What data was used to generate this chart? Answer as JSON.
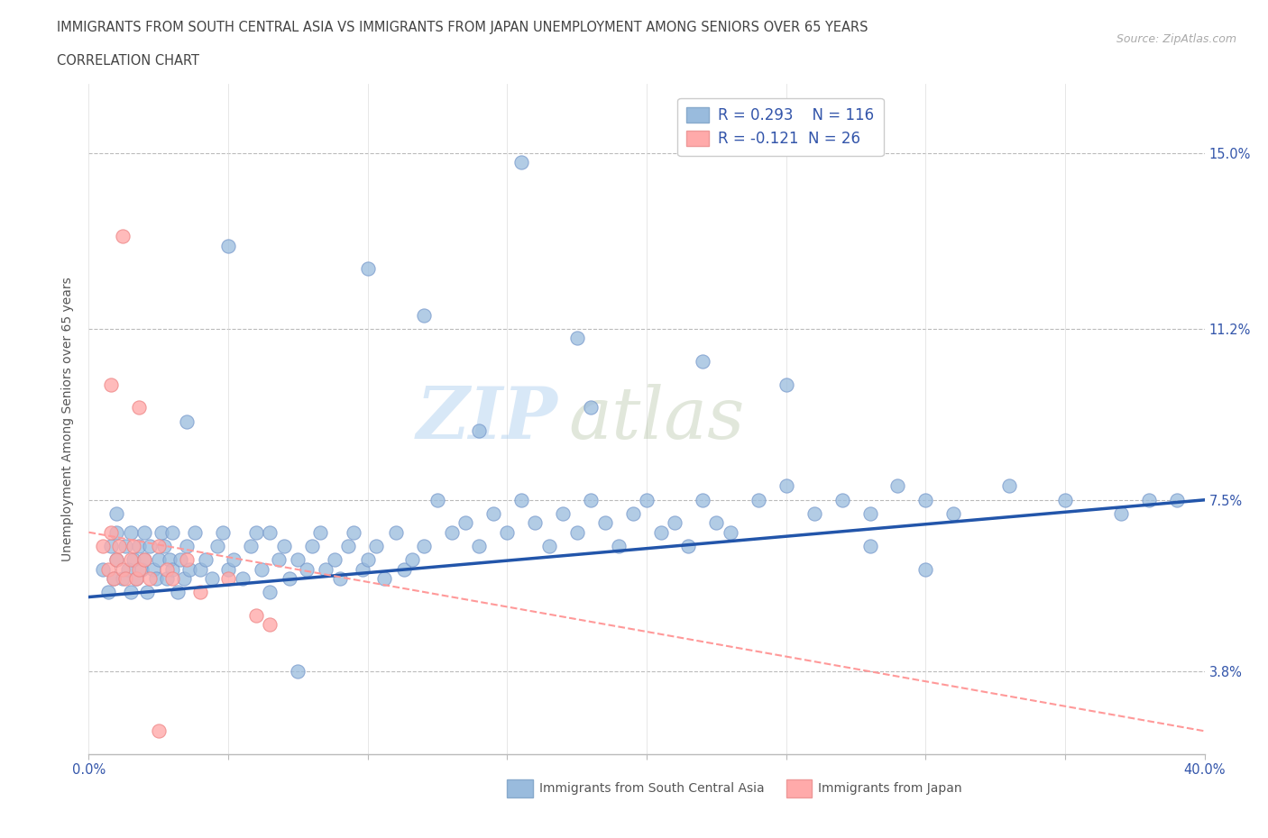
{
  "title_line1": "IMMIGRANTS FROM SOUTH CENTRAL ASIA VS IMMIGRANTS FROM JAPAN UNEMPLOYMENT AMONG SENIORS OVER 65 YEARS",
  "title_line2": "CORRELATION CHART",
  "source": "Source: ZipAtlas.com",
  "ylabel": "Unemployment Among Seniors over 65 years",
  "xlim": [
    0.0,
    0.4
  ],
  "ylim": [
    0.02,
    0.165
  ],
  "xticks": [
    0.0,
    0.05,
    0.1,
    0.15,
    0.2,
    0.25,
    0.3,
    0.35,
    0.4
  ],
  "xticklabels": [
    "0.0%",
    "",
    "",
    "",
    "",
    "",
    "",
    "",
    "40.0%"
  ],
  "ytick_positions": [
    0.038,
    0.075,
    0.112,
    0.15
  ],
  "ytick_labels": [
    "3.8%",
    "7.5%",
    "11.2%",
    "15.0%"
  ],
  "R_blue": 0.293,
  "N_blue": 116,
  "R_pink": -0.121,
  "N_pink": 26,
  "blue_color": "#99BBDD",
  "pink_color": "#FFAAAA",
  "trend_blue_color": "#2255AA",
  "trend_pink_color": "#FF9999",
  "legend_label_blue": "Immigrants from South Central Asia",
  "legend_label_pink": "Immigrants from Japan",
  "watermark_zip": "ZIP",
  "watermark_atlas": "atlas",
  "background_color": "#FFFFFF",
  "grid_color": "#BBBBBB",
  "title_color": "#444444",
  "label_color": "#555555",
  "axis_label_color": "#3355AA",
  "blue_scatter_x": [
    0.005,
    0.007,
    0.008,
    0.009,
    0.01,
    0.01,
    0.01,
    0.012,
    0.013,
    0.014,
    0.015,
    0.015,
    0.016,
    0.017,
    0.018,
    0.019,
    0.02,
    0.02,
    0.021,
    0.022,
    0.023,
    0.024,
    0.025,
    0.026,
    0.027,
    0.028,
    0.029,
    0.03,
    0.03,
    0.032,
    0.033,
    0.034,
    0.035,
    0.036,
    0.038,
    0.04,
    0.042,
    0.044,
    0.046,
    0.048,
    0.05,
    0.052,
    0.055,
    0.058,
    0.06,
    0.062,
    0.065,
    0.068,
    0.07,
    0.072,
    0.075,
    0.078,
    0.08,
    0.083,
    0.085,
    0.088,
    0.09,
    0.093,
    0.095,
    0.098,
    0.1,
    0.103,
    0.106,
    0.11,
    0.113,
    0.116,
    0.12,
    0.125,
    0.13,
    0.135,
    0.14,
    0.145,
    0.15,
    0.155,
    0.16,
    0.165,
    0.17,
    0.175,
    0.18,
    0.185,
    0.19,
    0.195,
    0.2,
    0.205,
    0.21,
    0.215,
    0.22,
    0.225,
    0.23,
    0.24,
    0.25,
    0.26,
    0.27,
    0.28,
    0.29,
    0.3,
    0.31,
    0.33,
    0.35,
    0.37,
    0.38,
    0.39,
    0.14,
    0.25,
    0.3,
    0.155,
    0.175,
    0.1,
    0.12,
    0.18,
    0.22,
    0.28,
    0.035,
    0.05,
    0.065,
    0.075
  ],
  "blue_scatter_y": [
    0.06,
    0.055,
    0.065,
    0.058,
    0.062,
    0.068,
    0.072,
    0.058,
    0.065,
    0.06,
    0.055,
    0.068,
    0.062,
    0.058,
    0.065,
    0.06,
    0.062,
    0.068,
    0.055,
    0.065,
    0.06,
    0.058,
    0.062,
    0.068,
    0.065,
    0.058,
    0.062,
    0.06,
    0.068,
    0.055,
    0.062,
    0.058,
    0.065,
    0.06,
    0.068,
    0.06,
    0.062,
    0.058,
    0.065,
    0.068,
    0.06,
    0.062,
    0.058,
    0.065,
    0.068,
    0.06,
    0.055,
    0.062,
    0.065,
    0.058,
    0.062,
    0.06,
    0.065,
    0.068,
    0.06,
    0.062,
    0.058,
    0.065,
    0.068,
    0.06,
    0.062,
    0.065,
    0.058,
    0.068,
    0.06,
    0.062,
    0.065,
    0.075,
    0.068,
    0.07,
    0.065,
    0.072,
    0.068,
    0.075,
    0.07,
    0.065,
    0.072,
    0.068,
    0.075,
    0.07,
    0.065,
    0.072,
    0.075,
    0.068,
    0.07,
    0.065,
    0.075,
    0.07,
    0.068,
    0.075,
    0.078,
    0.072,
    0.075,
    0.072,
    0.078,
    0.075,
    0.072,
    0.078,
    0.075,
    0.072,
    0.075,
    0.075,
    0.09,
    0.1,
    0.06,
    0.148,
    0.11,
    0.125,
    0.115,
    0.095,
    0.105,
    0.065,
    0.092,
    0.13,
    0.068,
    0.038
  ],
  "pink_scatter_x": [
    0.005,
    0.007,
    0.008,
    0.009,
    0.01,
    0.011,
    0.012,
    0.013,
    0.015,
    0.016,
    0.017,
    0.018,
    0.02,
    0.022,
    0.025,
    0.028,
    0.03,
    0.035,
    0.04,
    0.05,
    0.06,
    0.065,
    0.008,
    0.012,
    0.018,
    0.025
  ],
  "pink_scatter_y": [
    0.065,
    0.06,
    0.068,
    0.058,
    0.062,
    0.065,
    0.06,
    0.058,
    0.062,
    0.065,
    0.058,
    0.06,
    0.062,
    0.058,
    0.065,
    0.06,
    0.058,
    0.062,
    0.055,
    0.058,
    0.05,
    0.048,
    0.1,
    0.132,
    0.095,
    0.025
  ],
  "blue_trend_x0": 0.0,
  "blue_trend_y0": 0.054,
  "blue_trend_x1": 0.4,
  "blue_trend_y1": 0.075,
  "pink_trend_x0": 0.0,
  "pink_trend_y0": 0.068,
  "pink_trend_x1": 0.4,
  "pink_trend_y1": 0.025
}
